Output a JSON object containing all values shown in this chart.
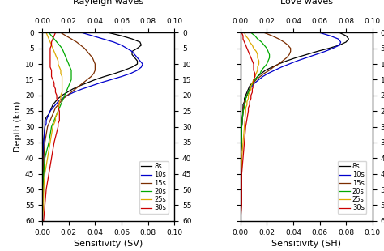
{
  "title_left": "Rayleigh waves",
  "title_right": "Love waves",
  "xlabel_left": "Sensitivity (SV)",
  "xlabel_right": "Sensitivity (SH)",
  "ylabel": "Depth (km)",
  "xlim": [
    0.0,
    0.1
  ],
  "ylim": [
    0,
    60
  ],
  "xticks": [
    0.0,
    0.02,
    0.04,
    0.06,
    0.08,
    0.1
  ],
  "yticks": [
    0,
    5,
    10,
    15,
    20,
    25,
    30,
    35,
    40,
    45,
    50,
    55,
    60
  ],
  "colors": {
    "8s": "#000000",
    "10s": "#0000cc",
    "15s": "#7b2d00",
    "20s": "#00aa00",
    "25s": "#ddaa00",
    "30s": "#cc0000"
  },
  "legend_labels": [
    "8s",
    "10s",
    "15s",
    "20s",
    "25s",
    "30s"
  ],
  "rayleigh": {
    "8s": {
      "depth": [
        0,
        1,
        2,
        3,
        4,
        5,
        6,
        7,
        8,
        9,
        10,
        11,
        12,
        13,
        14,
        15,
        16,
        17,
        18,
        19,
        20,
        21,
        22,
        23,
        24,
        25,
        26,
        27,
        28,
        29,
        30,
        35,
        40,
        45,
        50,
        55,
        60
      ],
      "sensitivity": [
        0.05,
        0.06,
        0.068,
        0.074,
        0.075,
        0.072,
        0.068,
        0.068,
        0.07,
        0.072,
        0.072,
        0.068,
        0.062,
        0.055,
        0.047,
        0.04,
        0.034,
        0.028,
        0.023,
        0.019,
        0.015,
        0.012,
        0.01,
        0.008,
        0.007,
        0.006,
        0.005,
        0.003,
        0.002,
        0.002,
        0.002,
        0.001,
        0.001,
        0.001,
        0.0,
        0.0,
        0.0
      ]
    },
    "10s": {
      "depth": [
        0,
        1,
        2,
        3,
        4,
        5,
        6,
        7,
        8,
        9,
        10,
        11,
        12,
        13,
        14,
        15,
        16,
        17,
        18,
        19,
        20,
        21,
        22,
        23,
        24,
        25,
        26,
        27,
        28,
        29,
        30,
        35,
        40,
        45,
        50,
        55,
        60
      ],
      "sensitivity": [
        0.03,
        0.038,
        0.046,
        0.054,
        0.06,
        0.064,
        0.068,
        0.07,
        0.072,
        0.074,
        0.076,
        0.075,
        0.072,
        0.067,
        0.06,
        0.052,
        0.044,
        0.037,
        0.03,
        0.024,
        0.019,
        0.015,
        0.012,
        0.01,
        0.008,
        0.006,
        0.005,
        0.004,
        0.003,
        0.003,
        0.002,
        0.001,
        0.001,
        0.0,
        0.0,
        0.0,
        0.0
      ]
    },
    "15s": {
      "depth": [
        0,
        1,
        2,
        3,
        4,
        5,
        6,
        7,
        8,
        9,
        10,
        11,
        12,
        13,
        14,
        15,
        16,
        17,
        18,
        19,
        20,
        21,
        22,
        23,
        24,
        25,
        26,
        27,
        28,
        29,
        30,
        35,
        40,
        45,
        50,
        55,
        60
      ],
      "sensitivity": [
        0.014,
        0.018,
        0.022,
        0.026,
        0.029,
        0.032,
        0.034,
        0.036,
        0.038,
        0.039,
        0.04,
        0.04,
        0.04,
        0.039,
        0.037,
        0.034,
        0.031,
        0.028,
        0.025,
        0.022,
        0.019,
        0.016,
        0.014,
        0.012,
        0.01,
        0.009,
        0.008,
        0.007,
        0.006,
        0.005,
        0.004,
        0.002,
        0.001,
        0.001,
        0.0,
        0.0,
        0.0
      ]
    },
    "20s": {
      "depth": [
        0,
        1,
        2,
        3,
        4,
        5,
        6,
        7,
        8,
        9,
        10,
        11,
        12,
        13,
        14,
        15,
        16,
        17,
        18,
        19,
        20,
        21,
        22,
        23,
        24,
        25,
        26,
        27,
        28,
        29,
        30,
        35,
        40,
        45,
        50,
        55,
        60
      ],
      "sensitivity": [
        0.005,
        0.007,
        0.009,
        0.011,
        0.013,
        0.015,
        0.016,
        0.017,
        0.018,
        0.019,
        0.02,
        0.021,
        0.022,
        0.022,
        0.022,
        0.022,
        0.021,
        0.02,
        0.019,
        0.018,
        0.017,
        0.016,
        0.015,
        0.014,
        0.013,
        0.012,
        0.011,
        0.01,
        0.009,
        0.008,
        0.007,
        0.005,
        0.002,
        0.001,
        0.001,
        0.0,
        0.0
      ]
    },
    "25s": {
      "depth": [
        0,
        1,
        2,
        3,
        4,
        5,
        6,
        7,
        8,
        9,
        10,
        11,
        12,
        13,
        14,
        15,
        16,
        17,
        18,
        19,
        20,
        21,
        22,
        23,
        24,
        25,
        26,
        27,
        28,
        29,
        30,
        35,
        40,
        45,
        50,
        55,
        60
      ],
      "sensitivity": [
        0.003,
        0.004,
        0.005,
        0.006,
        0.007,
        0.008,
        0.009,
        0.01,
        0.011,
        0.012,
        0.012,
        0.013,
        0.014,
        0.014,
        0.015,
        0.015,
        0.015,
        0.015,
        0.015,
        0.015,
        0.014,
        0.014,
        0.013,
        0.013,
        0.012,
        0.012,
        0.011,
        0.01,
        0.01,
        0.009,
        0.008,
        0.006,
        0.004,
        0.002,
        0.001,
        0.001,
        0.0
      ]
    },
    "30s": {
      "depth": [
        0,
        1,
        2,
        3,
        4,
        5,
        6,
        7,
        8,
        9,
        10,
        11,
        12,
        13,
        14,
        15,
        16,
        17,
        18,
        19,
        20,
        21,
        22,
        23,
        24,
        25,
        26,
        27,
        28,
        29,
        30,
        35,
        40,
        45,
        50,
        55,
        60
      ],
      "sensitivity": [
        0.01,
        0.009,
        0.008,
        0.007,
        0.007,
        0.006,
        0.006,
        0.006,
        0.006,
        0.006,
        0.006,
        0.006,
        0.007,
        0.007,
        0.007,
        0.008,
        0.009,
        0.009,
        0.01,
        0.01,
        0.011,
        0.011,
        0.012,
        0.012,
        0.012,
        0.013,
        0.013,
        0.013,
        0.013,
        0.012,
        0.012,
        0.009,
        0.007,
        0.005,
        0.003,
        0.002,
        0.001
      ]
    }
  },
  "love": {
    "8s": {
      "depth": [
        0,
        1,
        2,
        3,
        4,
        5,
        6,
        7,
        8,
        9,
        10,
        11,
        12,
        13,
        14,
        15,
        16,
        17,
        18,
        19,
        20,
        21,
        22,
        23,
        24,
        25,
        30,
        35,
        40,
        45,
        50,
        55,
        60
      ],
      "sensitivity": [
        0.075,
        0.08,
        0.082,
        0.08,
        0.075,
        0.067,
        0.058,
        0.05,
        0.042,
        0.035,
        0.029,
        0.024,
        0.019,
        0.016,
        0.013,
        0.011,
        0.009,
        0.007,
        0.006,
        0.005,
        0.004,
        0.003,
        0.003,
        0.002,
        0.002,
        0.002,
        0.001,
        0.001,
        0.0,
        0.0,
        0.0,
        0.0,
        0.0
      ]
    },
    "10s": {
      "depth": [
        0,
        1,
        2,
        3,
        4,
        5,
        6,
        7,
        8,
        9,
        10,
        11,
        12,
        13,
        14,
        15,
        16,
        17,
        18,
        19,
        20,
        21,
        22,
        23,
        24,
        25,
        30,
        35,
        40,
        45,
        50,
        55,
        60
      ],
      "sensitivity": [
        0.06,
        0.068,
        0.074,
        0.076,
        0.075,
        0.07,
        0.064,
        0.057,
        0.05,
        0.043,
        0.037,
        0.031,
        0.026,
        0.021,
        0.017,
        0.014,
        0.011,
        0.009,
        0.007,
        0.006,
        0.005,
        0.004,
        0.003,
        0.003,
        0.002,
        0.002,
        0.001,
        0.001,
        0.0,
        0.0,
        0.0,
        0.0,
        0.0
      ]
    },
    "15s": {
      "depth": [
        0,
        1,
        2,
        3,
        4,
        5,
        6,
        7,
        8,
        9,
        10,
        11,
        12,
        13,
        14,
        15,
        16,
        17,
        18,
        19,
        20,
        21,
        22,
        23,
        24,
        25,
        30,
        35,
        40,
        45,
        50,
        55,
        60
      ],
      "sensitivity": [
        0.018,
        0.024,
        0.029,
        0.033,
        0.036,
        0.038,
        0.038,
        0.037,
        0.035,
        0.032,
        0.029,
        0.025,
        0.022,
        0.018,
        0.015,
        0.012,
        0.01,
        0.008,
        0.007,
        0.006,
        0.005,
        0.004,
        0.003,
        0.003,
        0.002,
        0.002,
        0.001,
        0.001,
        0.0,
        0.0,
        0.0,
        0.0,
        0.0
      ]
    },
    "20s": {
      "depth": [
        0,
        1,
        2,
        3,
        4,
        5,
        6,
        7,
        8,
        9,
        10,
        11,
        12,
        13,
        14,
        15,
        16,
        17,
        18,
        19,
        20,
        21,
        22,
        23,
        24,
        25,
        30,
        35,
        40,
        45,
        50,
        55,
        60
      ],
      "sensitivity": [
        0.008,
        0.011,
        0.013,
        0.016,
        0.018,
        0.02,
        0.021,
        0.022,
        0.022,
        0.021,
        0.02,
        0.018,
        0.016,
        0.015,
        0.013,
        0.011,
        0.01,
        0.008,
        0.007,
        0.006,
        0.005,
        0.004,
        0.004,
        0.003,
        0.003,
        0.002,
        0.001,
        0.001,
        0.0,
        0.0,
        0.0,
        0.0,
        0.0
      ]
    },
    "25s": {
      "depth": [
        0,
        1,
        2,
        3,
        4,
        5,
        6,
        7,
        8,
        9,
        10,
        11,
        12,
        13,
        14,
        15,
        16,
        17,
        18,
        19,
        20,
        21,
        22,
        23,
        24,
        25,
        30,
        35,
        40,
        45,
        50,
        55,
        60
      ],
      "sensitivity": [
        0.003,
        0.004,
        0.006,
        0.007,
        0.009,
        0.01,
        0.012,
        0.013,
        0.013,
        0.014,
        0.014,
        0.013,
        0.013,
        0.012,
        0.011,
        0.01,
        0.009,
        0.008,
        0.008,
        0.007,
        0.006,
        0.006,
        0.005,
        0.005,
        0.004,
        0.004,
        0.003,
        0.002,
        0.001,
        0.001,
        0.0,
        0.0,
        0.0
      ]
    },
    "30s": {
      "depth": [
        0,
        1,
        2,
        3,
        4,
        5,
        6,
        7,
        8,
        9,
        10,
        11,
        12,
        13,
        14,
        15,
        16,
        17,
        18,
        19,
        20,
        21,
        22,
        23,
        24,
        25,
        30,
        35,
        40,
        45,
        50,
        55,
        60
      ],
      "sensitivity": [
        0.001,
        0.002,
        0.002,
        0.003,
        0.004,
        0.005,
        0.006,
        0.007,
        0.008,
        0.009,
        0.01,
        0.01,
        0.01,
        0.011,
        0.011,
        0.01,
        0.01,
        0.01,
        0.009,
        0.009,
        0.008,
        0.008,
        0.007,
        0.007,
        0.006,
        0.006,
        0.004,
        0.003,
        0.002,
        0.001,
        0.001,
        0.001,
        0.0
      ]
    }
  }
}
